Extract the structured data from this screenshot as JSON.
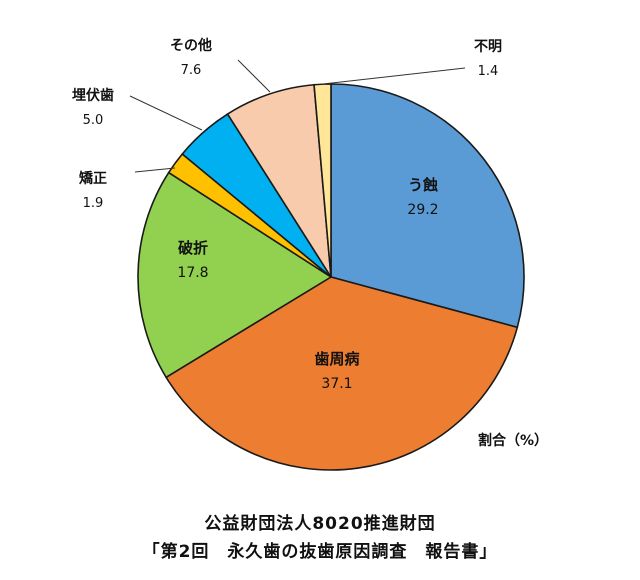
{
  "chart_data": {
    "type": "pie",
    "unit_label": "割合（%）",
    "start": "12 o'clock, clockwise",
    "slices": [
      {
        "name": "う蝕",
        "value": 29.2,
        "color": "#5b9bd5",
        "label": "inside"
      },
      {
        "name": "歯周病",
        "value": 37.1,
        "color": "#ed7d31",
        "label": "inside"
      },
      {
        "name": "破折",
        "value": 17.8,
        "color": "#92d050",
        "label": "inside"
      },
      {
        "name": "矯正",
        "value": 1.9,
        "color": "#ffc000",
        "label": "outside"
      },
      {
        "name": "埋伏歯",
        "value": 5.0,
        "color": "#00b0f0",
        "label": "outside"
      },
      {
        "name": "その他",
        "value": 7.6,
        "color": "#f8cbad",
        "label": "outside"
      },
      {
        "name": "不明",
        "value": 1.4,
        "color": "#ffe699",
        "label": "outside"
      }
    ]
  },
  "source": {
    "line1": "公益財団法人8020推進財団",
    "line2": "「第2回　永久歯の抜歯原因調査　報告書」"
  }
}
